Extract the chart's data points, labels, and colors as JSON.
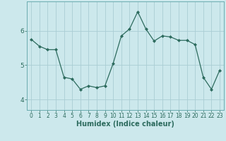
{
  "x": [
    0,
    1,
    2,
    3,
    4,
    5,
    6,
    7,
    8,
    9,
    10,
    11,
    12,
    13,
    14,
    15,
    16,
    17,
    18,
    19,
    20,
    21,
    22,
    23
  ],
  "y": [
    5.75,
    5.55,
    5.45,
    5.45,
    4.65,
    4.6,
    4.3,
    4.4,
    4.35,
    4.4,
    5.05,
    5.85,
    6.05,
    6.55,
    6.05,
    5.7,
    5.85,
    5.82,
    5.72,
    5.72,
    5.6,
    4.65,
    4.3,
    4.85
  ],
  "line_color": "#2d6b5e",
  "bg_color": "#cce8ec",
  "grid_color": "#aacdd4",
  "xlabel": "Humidex (Indice chaleur)",
  "ylim": [
    3.7,
    6.85
  ],
  "xlim": [
    -0.5,
    23.5
  ],
  "yticks": [
    4,
    5,
    6
  ],
  "xticks": [
    0,
    1,
    2,
    3,
    4,
    5,
    6,
    7,
    8,
    9,
    10,
    11,
    12,
    13,
    14,
    15,
    16,
    17,
    18,
    19,
    20,
    21,
    22,
    23
  ],
  "tick_color": "#2d6b5e",
  "spine_color": "#6aacb0",
  "xtick_fontsize": 5.5,
  "ytick_fontsize": 6.5,
  "xlabel_fontsize": 7.0
}
